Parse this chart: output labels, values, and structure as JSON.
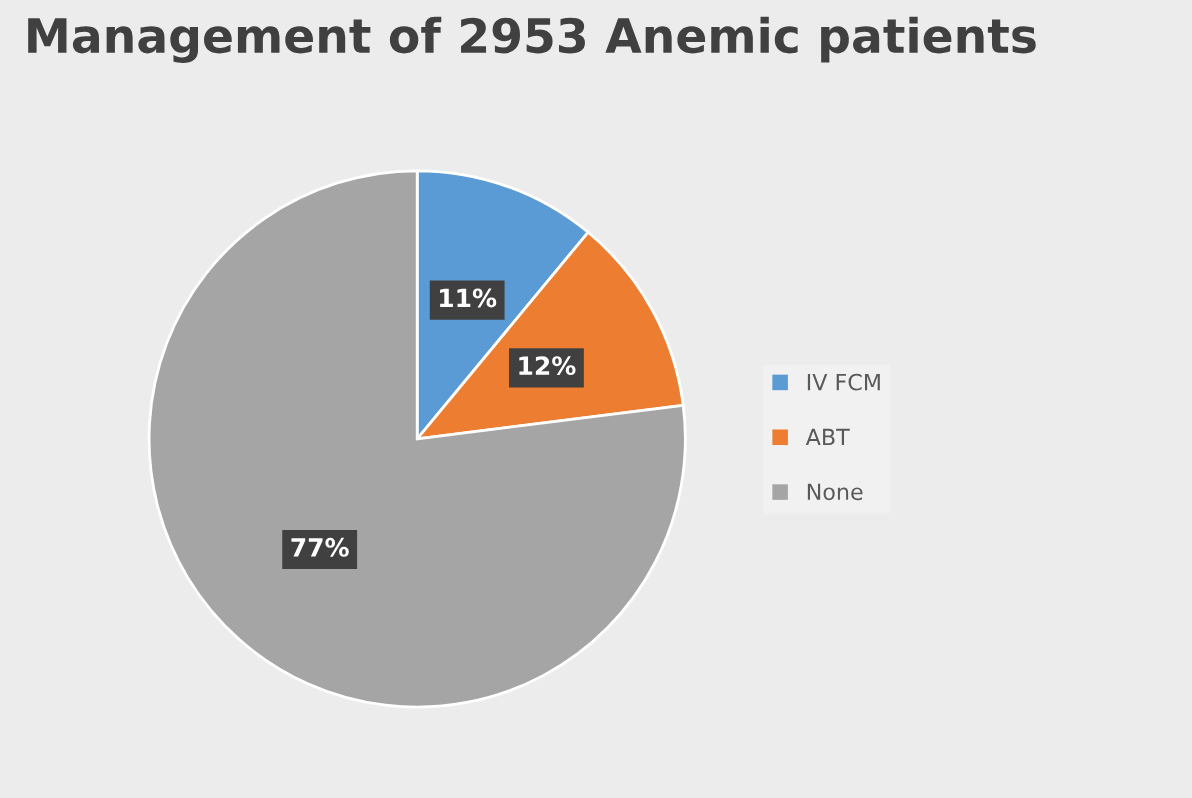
{
  "chart_data": {
    "type": "pie",
    "title": "Management of 2953 Anemic patients",
    "categories": [
      "IV FCM",
      "ABT",
      "None"
    ],
    "values": [
      11,
      12,
      77
    ],
    "colors": [
      "#5b9bd5",
      "#ed7d31",
      "#a5a5a5"
    ],
    "value_labels": [
      "11%",
      "12%",
      "77%"
    ],
    "legend": "right"
  }
}
